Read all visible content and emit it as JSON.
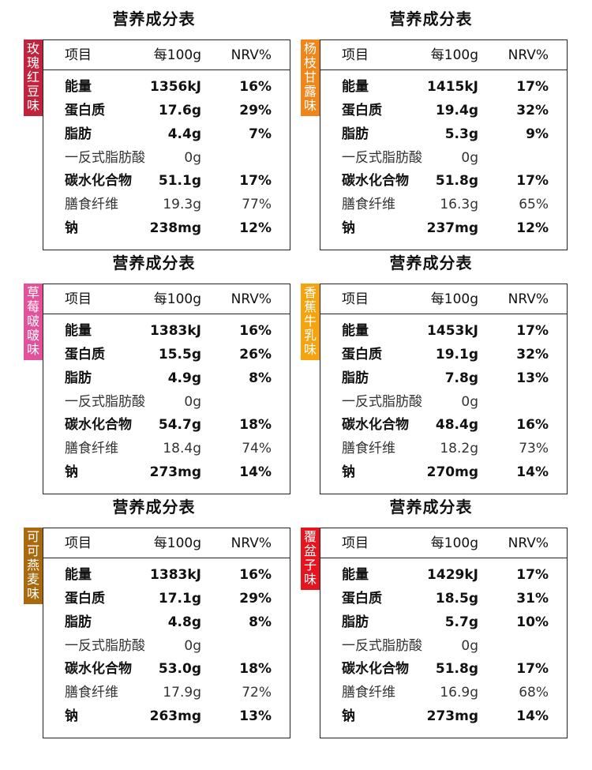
{
  "panels": [
    {
      "title": "营养成分表",
      "flavor": "玫瑰红豆味",
      "flavor_chars": [
        "玫",
        "瑰",
        "红",
        "豆",
        "味"
      ],
      "flavor_color": "#c0233d",
      "header": {
        "name": "项目",
        "value": "每100g",
        "nrv": "NRV%"
      },
      "rows": [
        {
          "name": "能量",
          "value": "1356kJ",
          "nrv": "16%"
        },
        {
          "name": "蛋白质",
          "value": "17.6g",
          "nrv": "29%"
        },
        {
          "name": "脂肪",
          "value": "4.4g",
          "nrv": "7%"
        },
        {
          "name": "一反式脂肪酸",
          "value": "0g",
          "nrv": ""
        },
        {
          "name": "碳水化合物",
          "value": "51.1g",
          "nrv": "17%"
        },
        {
          "name": "膳食纤维",
          "value": "19.3g",
          "nrv": "77%"
        },
        {
          "name": "钠",
          "value": "238mg",
          "nrv": "12%"
        }
      ]
    },
    {
      "title": "营养成分表",
      "flavor": "杨枝甘露味",
      "flavor_chars": [
        "杨",
        "枝",
        "甘",
        "露",
        "味"
      ],
      "flavor_color": "#f0861a",
      "header": {
        "name": "项目",
        "value": "每100g",
        "nrv": "NRV%"
      },
      "rows": [
        {
          "name": "能量",
          "value": "1415kJ",
          "nrv": "17%"
        },
        {
          "name": "蛋白质",
          "value": "19.4g",
          "nrv": "32%"
        },
        {
          "name": "脂肪",
          "value": "5.3g",
          "nrv": "9%"
        },
        {
          "name": "一反式脂肪酸",
          "value": "0g",
          "nrv": ""
        },
        {
          "name": "碳水化合物",
          "value": "51.8g",
          "nrv": "17%"
        },
        {
          "name": "膳食纤维",
          "value": "16.3g",
          "nrv": "65%"
        },
        {
          "name": "钠",
          "value": "237mg",
          "nrv": "12%"
        }
      ]
    },
    {
      "title": "营养成分表",
      "flavor": "草莓啵啵味",
      "flavor_chars": [
        "草",
        "莓",
        "啵",
        "啵",
        "味"
      ],
      "flavor_color": "#e3519a",
      "header": {
        "name": "项目",
        "value": "每100g",
        "nrv": "NRV%"
      },
      "rows": [
        {
          "name": "能量",
          "value": "1383kJ",
          "nrv": "16%"
        },
        {
          "name": "蛋白质",
          "value": "15.5g",
          "nrv": "26%"
        },
        {
          "name": "脂肪",
          "value": "4.9g",
          "nrv": "8%"
        },
        {
          "name": "一反式脂肪酸",
          "value": "0g",
          "nrv": ""
        },
        {
          "name": "碳水化合物",
          "value": "54.7g",
          "nrv": "18%"
        },
        {
          "name": "膳食纤维",
          "value": "18.4g",
          "nrv": "74%"
        },
        {
          "name": "钠",
          "value": "273mg",
          "nrv": "14%"
        }
      ]
    },
    {
      "title": "营养成分表",
      "flavor": "香蕉牛乳味",
      "flavor_chars": [
        "香",
        "蕉",
        "牛",
        "乳",
        "味"
      ],
      "flavor_color": "#f5a30f",
      "header": {
        "name": "项目",
        "value": "每100g",
        "nrv": "NRV%"
      },
      "rows": [
        {
          "name": "能量",
          "value": "1453kJ",
          "nrv": "17%"
        },
        {
          "name": "蛋白质",
          "value": "19.1g",
          "nrv": "32%"
        },
        {
          "name": "脂肪",
          "value": "7.8g",
          "nrv": "13%"
        },
        {
          "name": "一反式脂肪酸",
          "value": "0g",
          "nrv": ""
        },
        {
          "name": "碳水化合物",
          "value": "48.4g",
          "nrv": "16%"
        },
        {
          "name": "膳食纤维",
          "value": "18.2g",
          "nrv": "73%"
        },
        {
          "name": "钠",
          "value": "270mg",
          "nrv": "14%"
        }
      ]
    },
    {
      "title": "营养成分表",
      "flavor": "可可燕麦味",
      "flavor_chars": [
        "可",
        "可",
        "燕",
        "麦",
        "味"
      ],
      "flavor_color": "#a8690f",
      "header": {
        "name": "项目",
        "value": "每100g",
        "nrv": "NRV%"
      },
      "rows": [
        {
          "name": "能量",
          "value": "1383kJ",
          "nrv": "16%"
        },
        {
          "name": "蛋白质",
          "value": "17.1g",
          "nrv": "29%"
        },
        {
          "name": "脂肪",
          "value": "4.8g",
          "nrv": "8%"
        },
        {
          "name": "一反式脂肪酸",
          "value": "0g",
          "nrv": ""
        },
        {
          "name": "碳水化合物",
          "value": "53.0g",
          "nrv": "18%"
        },
        {
          "name": "膳食纤维",
          "value": "17.9g",
          "nrv": "72%"
        },
        {
          "name": "钠",
          "value": "263mg",
          "nrv": "13%"
        }
      ]
    },
    {
      "title": "营养成分表",
      "flavor": "覆盆子味",
      "flavor_chars": [
        "覆",
        "盆",
        "子",
        "味"
      ],
      "flavor_color": "#e5141e",
      "header": {
        "name": "项目",
        "value": "每100g",
        "nrv": "NRV%"
      },
      "rows": [
        {
          "name": "能量",
          "value": "1429kJ",
          "nrv": "17%"
        },
        {
          "name": "蛋白质",
          "value": "18.5g",
          "nrv": "31%"
        },
        {
          "name": "脂肪",
          "value": "5.7g",
          "nrv": "10%"
        },
        {
          "name": "一反式脂肪酸",
          "value": "0g",
          "nrv": ""
        },
        {
          "name": "碳水化合物",
          "value": "51.8g",
          "nrv": "17%"
        },
        {
          "name": "膳食纤维",
          "value": "16.9g",
          "nrv": "68%"
        },
        {
          "name": "钠",
          "value": "273mg",
          "nrv": "14%"
        }
      ]
    }
  ]
}
